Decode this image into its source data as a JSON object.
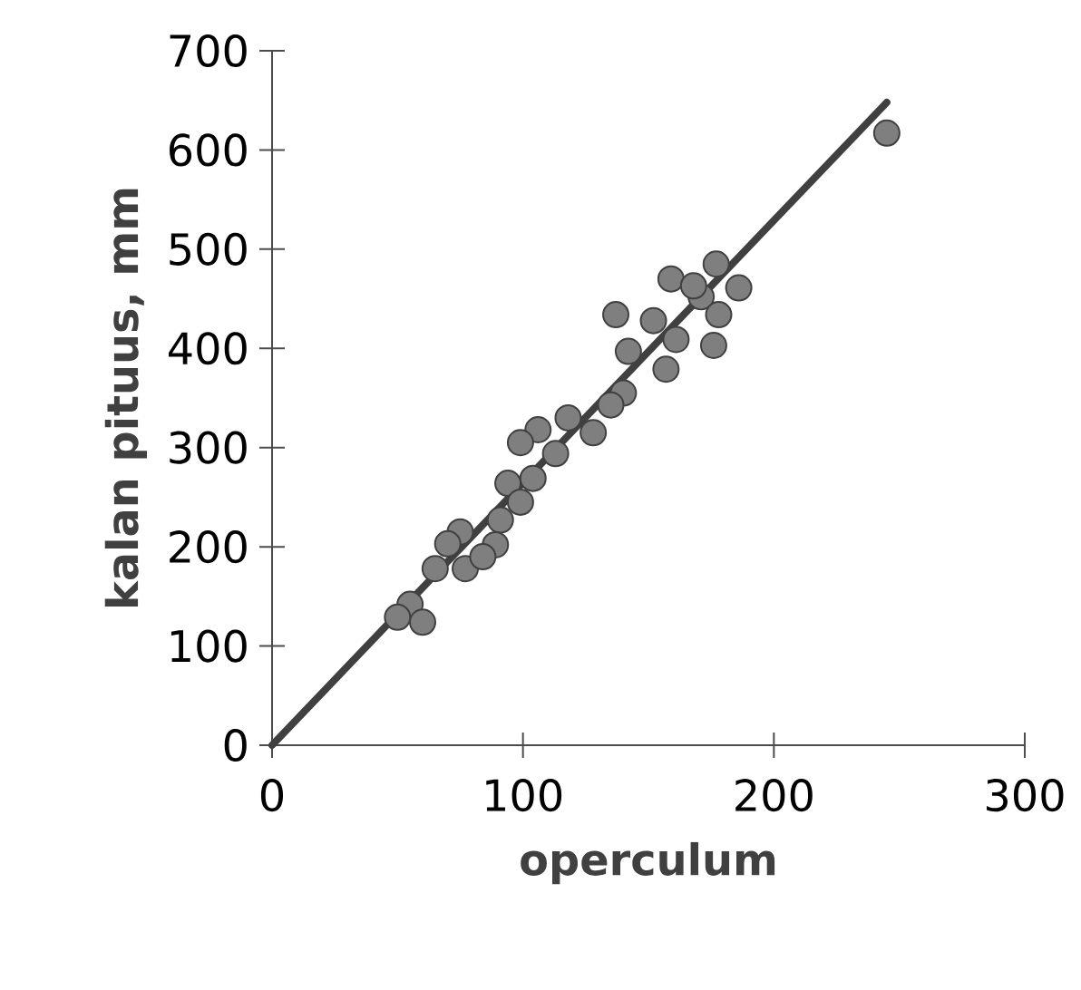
{
  "chart_data": {
    "type": "scatter",
    "xlabel": "operculum",
    "ylabel": "kalan pituus, mm",
    "xlim": [
      0,
      300
    ],
    "ylim": [
      0,
      700
    ],
    "xticks": [
      0,
      100,
      200,
      300
    ],
    "yticks": [
      0,
      100,
      200,
      300,
      400,
      500,
      600,
      700
    ],
    "grid": false,
    "series": [
      {
        "marker": "circle",
        "color": "#7f7f7f",
        "x": [
          245,
          137,
          159,
          177,
          186,
          171,
          152,
          161,
          176,
          178,
          142,
          157,
          168,
          140,
          135,
          118,
          106,
          128,
          99,
          113,
          104,
          94,
          91,
          99,
          89,
          75,
          65,
          55,
          77,
          70,
          60,
          50,
          84
        ],
        "values": [
          617,
          434,
          470,
          485,
          461,
          452,
          428,
          409,
          403,
          434,
          397,
          379,
          463,
          355,
          343,
          330,
          318,
          315,
          305,
          294,
          269,
          264,
          227,
          245,
          202,
          215,
          178,
          142,
          178,
          203,
          124,
          129,
          190
        ]
      },
      {
        "type": "line",
        "color": "#404040",
        "x": [
          0,
          245
        ],
        "values": [
          0,
          648
        ]
      }
    ]
  }
}
